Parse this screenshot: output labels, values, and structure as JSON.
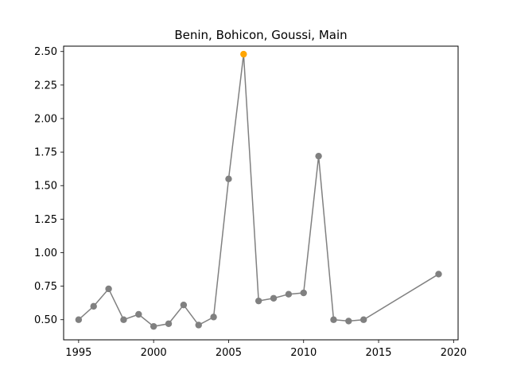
{
  "chart_data": {
    "type": "line",
    "title": "Benin, Bohicon, Goussi, Main",
    "xlabel": "",
    "ylabel": "",
    "xlim": [
      1994,
      2020.3
    ],
    "ylim": [
      0.35,
      2.54
    ],
    "xticks": [
      1995,
      2000,
      2005,
      2010,
      2015,
      2020
    ],
    "xtick_labels": [
      "1995",
      "2000",
      "2005",
      "2010",
      "2015",
      "2020"
    ],
    "yticks": [
      0.5,
      0.75,
      1.0,
      1.25,
      1.5,
      1.75,
      2.0,
      2.25,
      2.5
    ],
    "ytick_labels": [
      "0.50",
      "0.75",
      "1.00",
      "1.25",
      "1.50",
      "1.75",
      "2.00",
      "2.25",
      "2.50"
    ],
    "grid": false,
    "series": [
      {
        "color": "#808080",
        "highlight_color": "#ffa500",
        "x": [
          1995,
          1996,
          1997,
          1998,
          1999,
          2000,
          2001,
          2002,
          2003,
          2004,
          2005,
          2006,
          2007,
          2008,
          2009,
          2010,
          2011,
          2012,
          2013,
          2014,
          2019
        ],
        "y": [
          0.5,
          0.6,
          0.73,
          0.5,
          0.54,
          0.45,
          0.47,
          0.61,
          0.46,
          0.52,
          1.55,
          2.48,
          0.64,
          0.66,
          0.69,
          0.7,
          1.72,
          0.5,
          0.49,
          0.5,
          0.84
        ],
        "highlight_x": [
          2006
        ]
      }
    ]
  }
}
